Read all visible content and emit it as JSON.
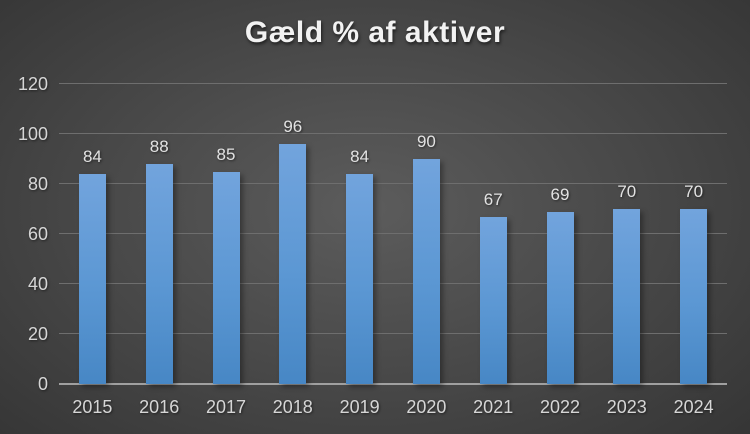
{
  "colors": {
    "background_center": "#5c5c5c",
    "background_edge": "#242424",
    "title_color": "#f2f2f2",
    "tick_label": "#d6d6d6",
    "data_label": "#e2e2e2",
    "gridline": "#6e6e6e",
    "axis_line": "#a0a0a0",
    "bar_top": "#72a4dd",
    "bar_bottom": "#4787c5"
  },
  "chart_data": {
    "type": "bar",
    "title": "Gæld % af aktiver",
    "categories": [
      "2015",
      "2016",
      "2017",
      "2018",
      "2019",
      "2020",
      "2021",
      "2022",
      "2023",
      "2024"
    ],
    "values": [
      84,
      88,
      85,
      96,
      84,
      90,
      67,
      69,
      70,
      70
    ],
    "xlabel": "",
    "ylabel": "",
    "ylim": [
      0,
      120
    ],
    "yticks": [
      0,
      20,
      40,
      60,
      80,
      100,
      120
    ],
    "grid": true,
    "legend": false,
    "data_labels": true
  }
}
